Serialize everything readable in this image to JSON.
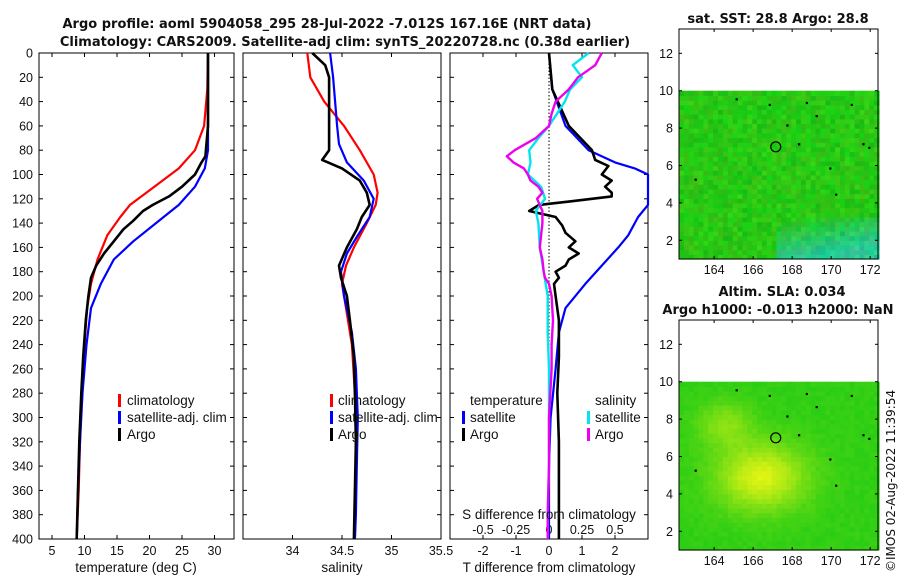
{
  "title": {
    "line1": "Argo profile: aoml 5904058_295 28-Jul-2022 -7.012S 167.16E (NRT data)",
    "line2": "Climatology: CARS2009. Satellite-adj clim: synTS_20220728.nc (0.38d earlier)"
  },
  "timestamp": "©IMOS 02-Aug-2022 11:39:54",
  "colors": {
    "climatology": "#ff0000",
    "satellite": "#0000ff",
    "argo": "#000000",
    "sat_salinity": "#00e5ee",
    "argo_salinity": "#ee00ee"
  },
  "chart_data": [
    {
      "type": "line",
      "name": "temperature",
      "xlabel": "temperature (deg C)",
      "ylabel": "",
      "xlim": [
        3,
        33
      ],
      "ylim": [
        400,
        0
      ],
      "xticks": [
        "5",
        "10",
        "15",
        "20",
        "25",
        "30"
      ],
      "yticks": [
        "0",
        "20",
        "40",
        "60",
        "80",
        "100",
        "120",
        "140",
        "160",
        "180",
        "200",
        "220",
        "240",
        "260",
        "280",
        "300",
        "320",
        "340",
        "360",
        "380",
        "400"
      ],
      "legend": [
        "climatology",
        "satellite-adj. clim",
        "Argo"
      ],
      "series": [
        {
          "name": "climatology",
          "depth": [
            0,
            30,
            60,
            80,
            95,
            105,
            115,
            125,
            135,
            150,
            170,
            190,
            210,
            240,
            280,
            320,
            360,
            400
          ],
          "values": [
            29.0,
            28.9,
            28.4,
            27.0,
            24.5,
            22.0,
            19.5,
            17.0,
            15.5,
            13.5,
            12.0,
            11.0,
            10.4,
            10.0,
            9.6,
            9.3,
            9.1,
            8.8
          ]
        },
        {
          "name": "satellite-adj. clim",
          "depth": [
            0,
            40,
            80,
            95,
            110,
            125,
            140,
            155,
            170,
            190,
            210,
            240,
            280,
            320,
            360,
            400
          ],
          "values": [
            29.0,
            29.0,
            29.0,
            28.5,
            27.0,
            24.5,
            21.0,
            17.5,
            14.5,
            12.5,
            11.0,
            10.3,
            9.7,
            9.3,
            9.0,
            8.8
          ]
        },
        {
          "name": "Argo",
          "depth": [
            0,
            60,
            85,
            90,
            100,
            110,
            118,
            125,
            130,
            138,
            145,
            155,
            165,
            175,
            185,
            200,
            220,
            250,
            280,
            320,
            360,
            400
          ],
          "values": [
            29.0,
            29.0,
            28.6,
            28.0,
            27.0,
            25.0,
            23.0,
            20.5,
            19.0,
            17.5,
            16.0,
            14.5,
            13.0,
            11.8,
            11.0,
            10.6,
            10.2,
            9.8,
            9.5,
            9.2,
            9.0,
            8.8
          ]
        }
      ]
    },
    {
      "type": "line",
      "name": "salinity",
      "xlabel": "salinity",
      "xlim": [
        33.5,
        35.5
      ],
      "ylim": [
        400,
        0
      ],
      "xticks": [
        "34",
        "34.5",
        "35",
        "35.5"
      ],
      "legend": [
        "climatology",
        "satellite-adj. clim",
        "Argo"
      ],
      "series": [
        {
          "name": "climatology",
          "depth": [
            0,
            20,
            40,
            60,
            80,
            100,
            115,
            125,
            140,
            160,
            175,
            190,
            210,
            240,
            280,
            320,
            360,
            400
          ],
          "values": [
            34.15,
            34.18,
            34.32,
            34.52,
            34.68,
            34.82,
            34.86,
            34.84,
            34.75,
            34.62,
            34.54,
            34.5,
            34.54,
            34.6,
            34.63,
            34.64,
            34.64,
            34.63
          ]
        },
        {
          "name": "satellite-adj. clim",
          "depth": [
            0,
            20,
            40,
            60,
            75,
            90,
            105,
            120,
            135,
            150,
            165,
            180,
            200,
            230,
            260,
            300,
            340,
            380,
            400
          ],
          "values": [
            34.38,
            34.41,
            34.43,
            34.45,
            34.47,
            34.55,
            34.72,
            34.82,
            34.78,
            34.66,
            34.55,
            34.49,
            34.52,
            34.6,
            34.64,
            34.66,
            34.65,
            34.64,
            34.63
          ]
        },
        {
          "name": "Argo",
          "depth": [
            0,
            10,
            20,
            40,
            60,
            80,
            88,
            95,
            105,
            115,
            125,
            135,
            145,
            160,
            175,
            185,
            200,
            220,
            250,
            280,
            320,
            360,
            400
          ],
          "values": [
            34.2,
            34.33,
            34.37,
            34.37,
            34.37,
            34.37,
            34.3,
            34.5,
            34.68,
            34.75,
            34.78,
            34.7,
            34.65,
            34.55,
            34.47,
            34.49,
            34.55,
            34.58,
            34.62,
            34.63,
            34.64,
            34.63,
            34.62
          ]
        }
      ]
    },
    {
      "type": "line",
      "name": "difference",
      "xlabel": "T difference from climatology",
      "xlabel_top": "S difference from climatology",
      "xlim": [
        -3,
        3
      ],
      "ylim": [
        400,
        0
      ],
      "xticks": [
        "-2",
        "-1",
        "0",
        "1",
        "2"
      ],
      "xticks_top": [
        "-0.5",
        "-0.25",
        "0",
        "0.25",
        "0.5"
      ],
      "legend_title_left": "temperature",
      "legend_title_right": "salinity",
      "legend_left": [
        "satellite",
        "Argo"
      ],
      "legend_right": [
        "satellite",
        "Argo"
      ],
      "series": [
        {
          "name": "temperature satellite",
          "depth": [
            0,
            30,
            60,
            80,
            90,
            95,
            100,
            105,
            115,
            125,
            135,
            145,
            150,
            160,
            175,
            190,
            210,
            230,
            260,
            300,
            340,
            400
          ],
          "values": [
            0.0,
            0.1,
            0.5,
            1.2,
            2.0,
            2.6,
            3.0,
            3.1,
            3.1,
            3.0,
            2.7,
            2.5,
            2.4,
            2.1,
            1.6,
            1.1,
            0.5,
            0.3,
            0.2,
            0.05,
            0.0,
            0.0
          ]
        },
        {
          "name": "temperature Argo",
          "depth": [
            0,
            30,
            60,
            80,
            88,
            93,
            100,
            105,
            110,
            115,
            118,
            122,
            125,
            130,
            135,
            142,
            148,
            155,
            160,
            165,
            170,
            175,
            180,
            185,
            190,
            200,
            220,
            250,
            280,
            320,
            360,
            400
          ],
          "values": [
            0.0,
            0.1,
            0.6,
            1.3,
            1.4,
            1.8,
            1.6,
            1.9,
            1.7,
            1.9,
            1.9,
            0.7,
            -0.3,
            -0.6,
            0.2,
            0.4,
            0.5,
            0.8,
            0.6,
            0.9,
            0.6,
            0.5,
            0.2,
            0.3,
            0.15,
            0.2,
            0.3,
            0.3,
            0.25,
            0.3,
            0.3,
            0.3
          ]
        },
        {
          "name": "salinity satellite",
          "depth": [
            0,
            10,
            20,
            30,
            40,
            50,
            60,
            70,
            80,
            90,
            100,
            110,
            120,
            130,
            140,
            160,
            180,
            200,
            230,
            260,
            300,
            340,
            380,
            400
          ],
          "values": [
            0.3,
            0.18,
            0.25,
            0.16,
            0.12,
            0.06,
            0.0,
            -0.08,
            -0.15,
            -0.14,
            -0.16,
            -0.06,
            -0.03,
            -0.1,
            -0.08,
            -0.07,
            -0.04,
            -0.01,
            -0.01,
            0.0,
            0.0,
            0.0,
            -0.01,
            -0.01
          ]
        },
        {
          "name": "salinity Argo",
          "depth": [
            0,
            10,
            20,
            30,
            40,
            50,
            60,
            70,
            80,
            85,
            90,
            95,
            100,
            105,
            110,
            115,
            120,
            130,
            140,
            150,
            160,
            170,
            180,
            185,
            190,
            200,
            220,
            240,
            260,
            280,
            300,
            340,
            380,
            400
          ],
          "values": [
            0.4,
            0.35,
            0.22,
            0.15,
            0.05,
            0.02,
            0.0,
            -0.1,
            -0.26,
            -0.32,
            -0.27,
            -0.19,
            -0.16,
            -0.14,
            -0.08,
            -0.05,
            -0.09,
            -0.05,
            -0.05,
            -0.06,
            -0.07,
            -0.05,
            -0.04,
            -0.03,
            0.0,
            0.02,
            0.03,
            0.02,
            0.02,
            0.01,
            0.0,
            0.0,
            -0.01,
            -0.01
          ]
        }
      ]
    },
    {
      "type": "heatmap",
      "name": "sst map",
      "title": "sat. SST: 28.8 Argo: 28.8",
      "xlim": [
        162.2,
        172.4
      ],
      "ylim": [
        1,
        13.3
      ],
      "xticks": [
        "164",
        "166",
        "168",
        "170",
        "172"
      ],
      "yticks": [
        "2",
        "4",
        "6",
        "8",
        "10",
        "12"
      ],
      "marker": {
        "lon": 167.16,
        "lat": 7.0
      }
    },
    {
      "type": "heatmap",
      "name": "sla map",
      "title_line1": "Altim. SLA: 0.034",
      "title_line2": "Argo h1000: -0.013 h2000: NaN",
      "xlim": [
        162.2,
        172.4
      ],
      "ylim": [
        1,
        13.3
      ],
      "xticks": [
        "164",
        "166",
        "168",
        "170",
        "172"
      ],
      "yticks": [
        "2",
        "4",
        "6",
        "8",
        "10",
        "12"
      ],
      "marker": {
        "lon": 167.16,
        "lat": 7.0
      }
    }
  ]
}
